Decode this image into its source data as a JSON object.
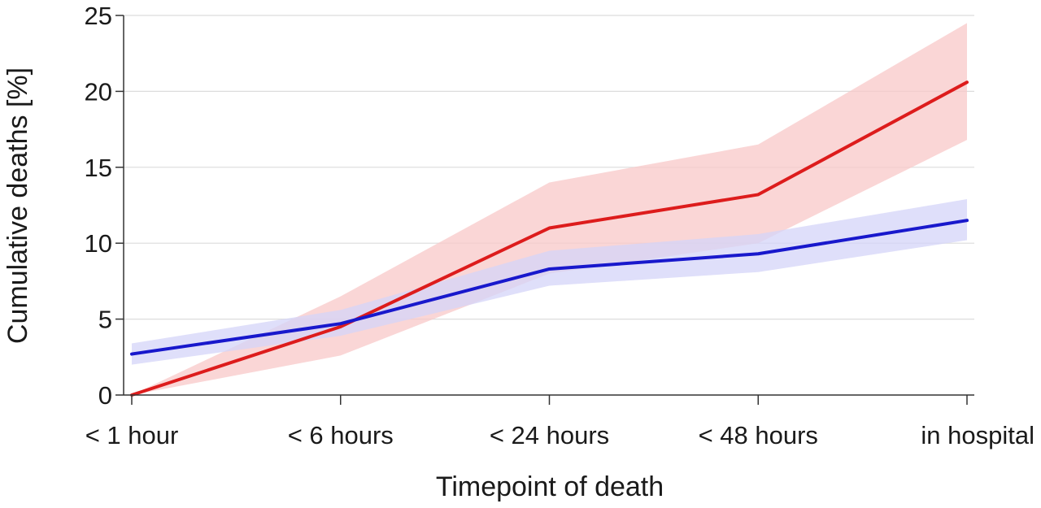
{
  "chart_data": {
    "type": "line",
    "title": "",
    "xlabel": "Timepoint of death",
    "ylabel": "Cumulative deaths [%]",
    "categories": [
      "< 1 hour",
      "< 6 hours",
      "< 24 hours",
      "< 48 hours",
      "in hospital"
    ],
    "ylim": [
      0,
      25
    ],
    "yticks": [
      0,
      5,
      10,
      15,
      20,
      25
    ],
    "grid": true,
    "legend": "none",
    "series": [
      {
        "color": "#dd1c1c",
        "band_color": "#f8c8c8",
        "values": [
          0.0,
          4.5,
          11.0,
          13.2,
          20.6
        ],
        "lower": [
          0.0,
          2.6,
          8.0,
          10.0,
          16.8
        ],
        "upper": [
          0.0,
          6.5,
          14.0,
          16.5,
          24.5
        ]
      },
      {
        "color": "#1818cc",
        "band_color": "#d4d4f8",
        "values": [
          2.7,
          4.7,
          8.3,
          9.3,
          11.5
        ],
        "lower": [
          2.0,
          3.9,
          7.2,
          8.1,
          10.2
        ],
        "upper": [
          3.4,
          5.6,
          9.5,
          10.6,
          12.9
        ]
      }
    ]
  }
}
